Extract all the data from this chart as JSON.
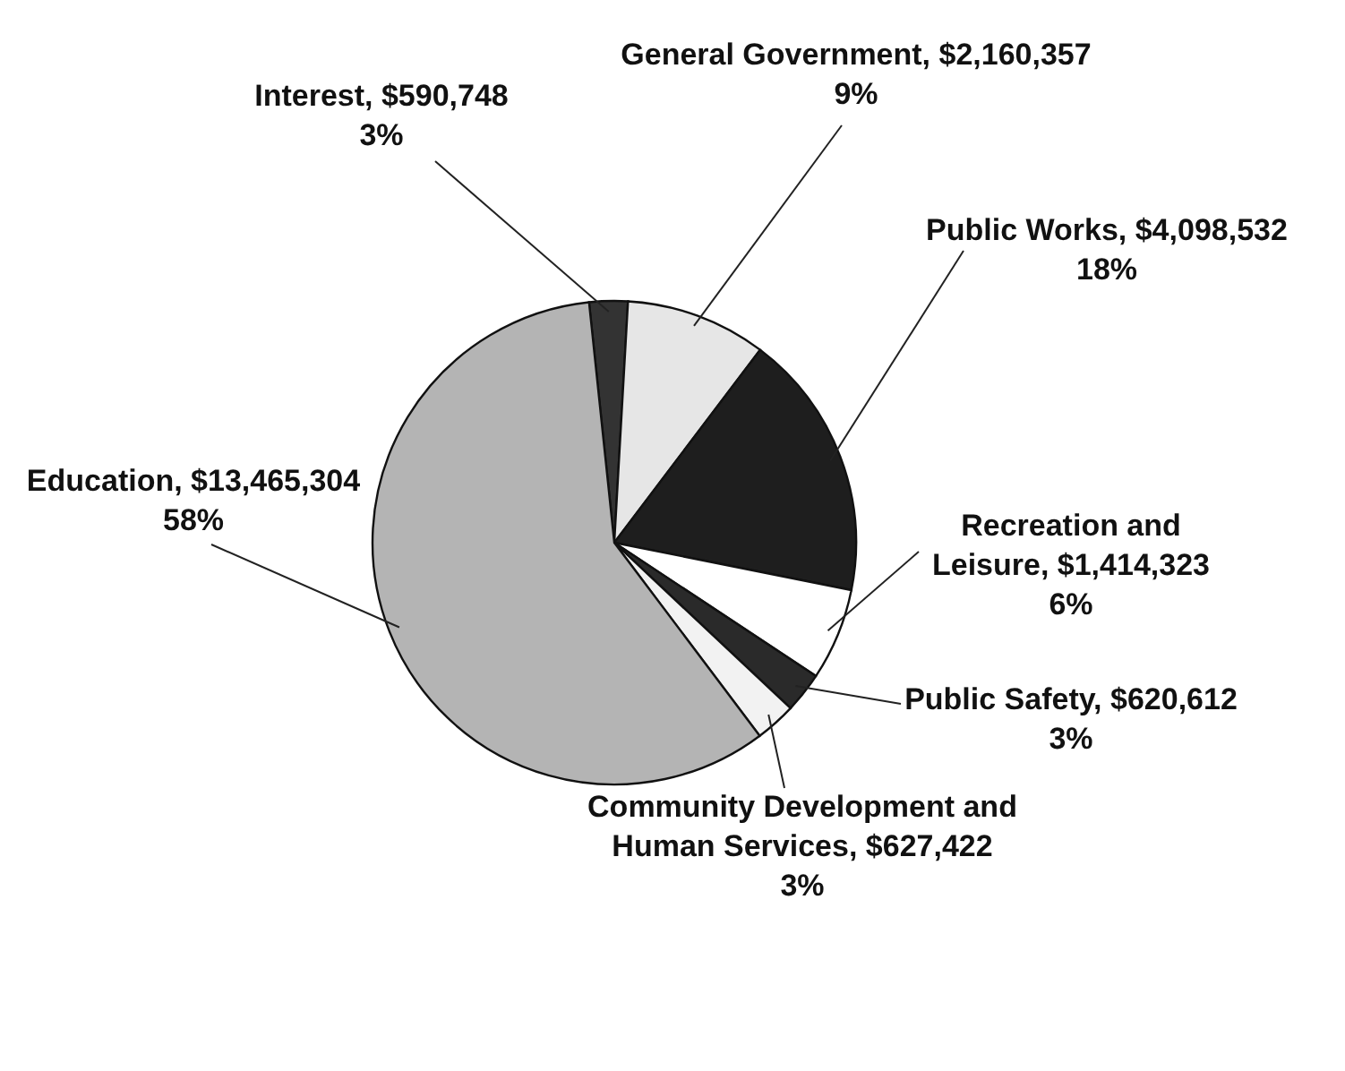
{
  "chart_data": {
    "type": "pie",
    "categories": [
      "Interest",
      "General Government",
      "Public Works",
      "Recreation and Leisure",
      "Public Safety",
      "Community Development and Human Services",
      "Education"
    ],
    "values": [
      590748,
      2160357,
      4098532,
      1414323,
      620612,
      627422,
      13465304
    ],
    "colors": [
      "#333333",
      "#e6e6e6",
      "#1e1e1e",
      "#ffffff",
      "#2a2a2a",
      "#f2f2f2",
      "#b4b4b4"
    ],
    "value_labels": [
      "$590,748\n3%",
      "$2,160,357\n9%",
      "$4,098,532\n18%",
      "$1,414,323\n6%",
      "$620,612\n3%",
      "$627,422\n3%",
      "$13,465,304\n58%"
    ]
  }
}
